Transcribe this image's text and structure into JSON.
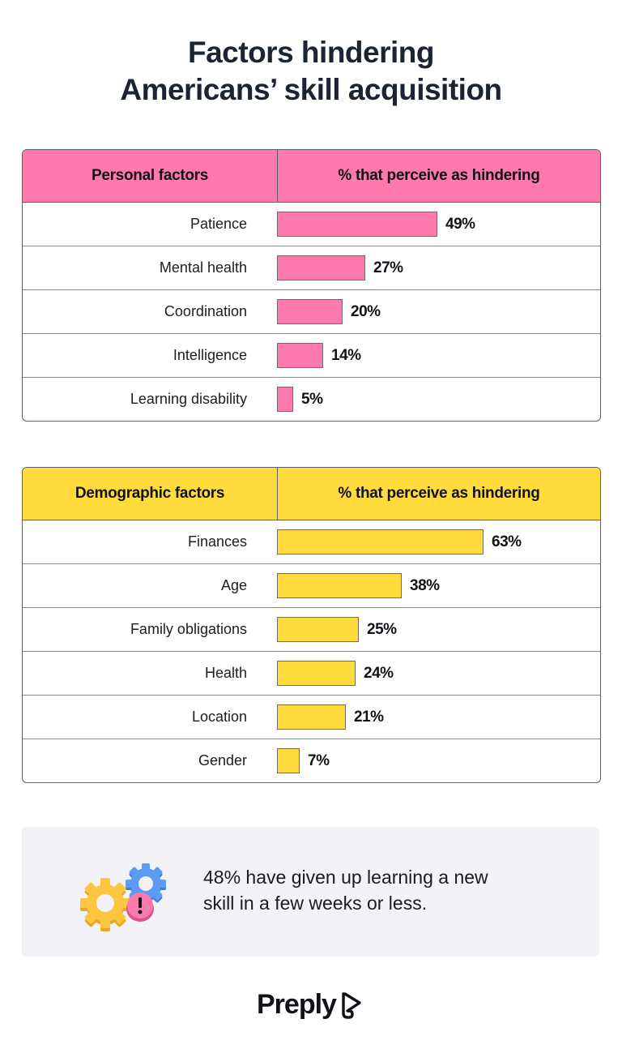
{
  "title": {
    "line1": "Factors hindering",
    "line2": "Americans’ skill acquisition"
  },
  "colors": {
    "personal": "#ff7aac",
    "demographic": "#ffdc3c",
    "callout_bg": "#f2f2f7"
  },
  "chart_data": [
    {
      "type": "bar",
      "orientation": "horizontal",
      "title": "Personal factors",
      "column_headers": [
        "Personal factors",
        "% that perceive as hindering"
      ],
      "categories": [
        "Patience",
        "Mental health",
        "Coordination",
        "Intelligence",
        "Learning disability"
      ],
      "values": [
        49,
        27,
        20,
        14,
        5
      ],
      "value_labels": [
        "49%",
        "27%",
        "20%",
        "14%",
        "5%"
      ],
      "unit": "%",
      "color": "#ff7aac"
    },
    {
      "type": "bar",
      "orientation": "horizontal",
      "title": "Demographic factors",
      "column_headers": [
        "Demographic factors",
        "% that perceive as hindering"
      ],
      "categories": [
        "Finances",
        "Age",
        "Family obligations",
        "Health",
        "Location",
        "Gender"
      ],
      "values": [
        63,
        38,
        25,
        24,
        21,
        7
      ],
      "value_labels": [
        "63%",
        "38%",
        "25%",
        "24%",
        "21%",
        "7%"
      ],
      "unit": "%",
      "color": "#ffdc3c"
    }
  ],
  "callout": {
    "icon": "gears-warning-icon",
    "line1": "48% have given up learning a new",
    "line2": "skill in a few weeks or less."
  },
  "logo": {
    "text": "Preply",
    "icon": "preply-logo-icon"
  }
}
